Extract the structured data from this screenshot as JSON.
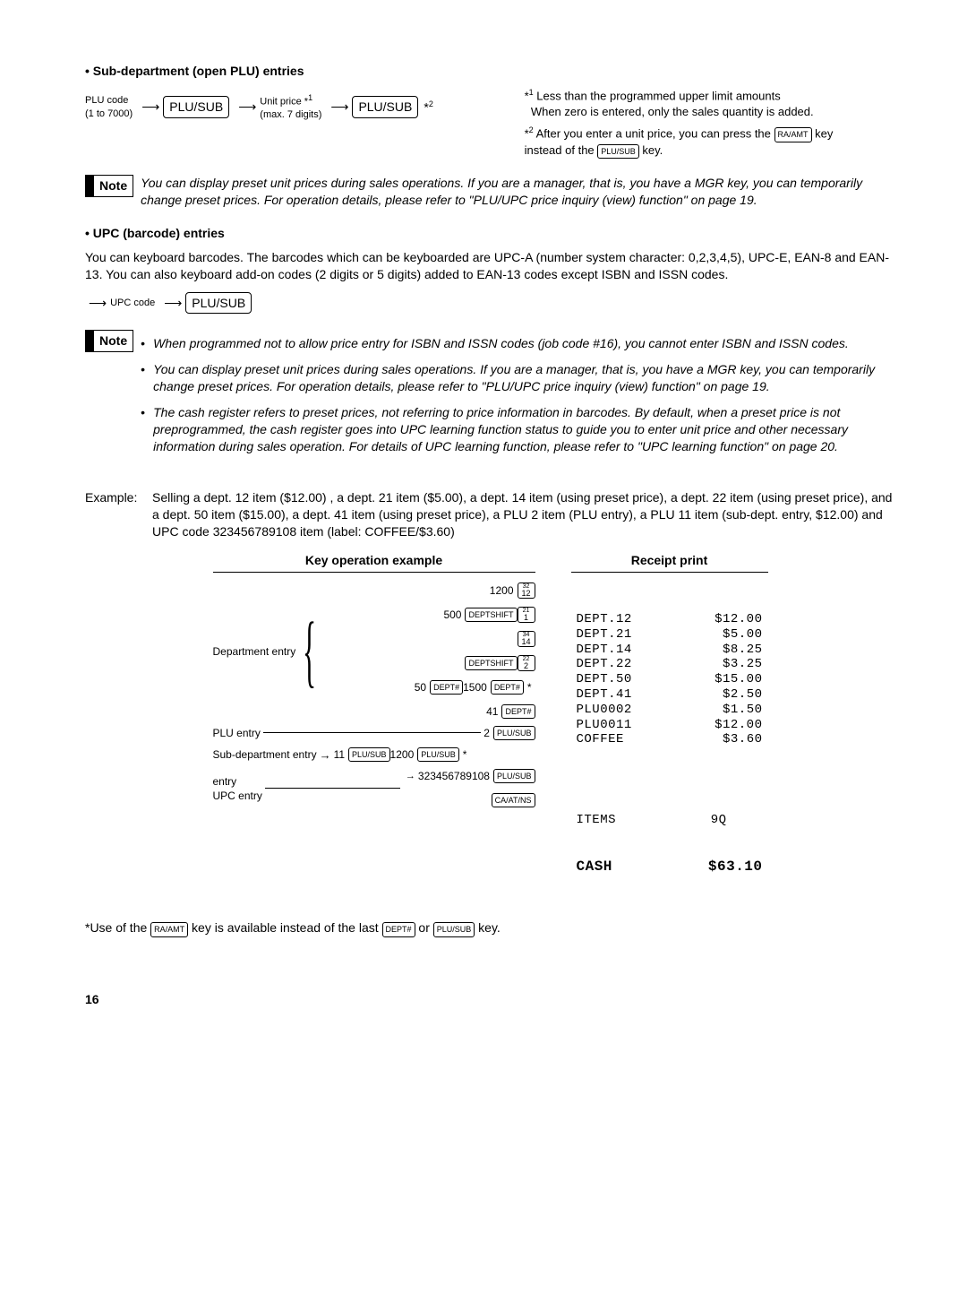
{
  "section1_heading": "• Sub-department (open PLU) entries",
  "flow1": {
    "plu_code": "PLU code",
    "plu_code_sub": "(1 to 7000)",
    "key1": "PLU/SUB",
    "unit_price": "Unit price *",
    "sup1": "1",
    "unit_price_sub": "(max. 7 digits)",
    "key2": "PLU/SUB",
    "star2": "*",
    "sup2": "2"
  },
  "side_notes": {
    "n1_star": "*",
    "n1_sup": "1",
    "n1_line1": "Less than the programmed upper limit amounts",
    "n1_line2": "When zero is entered, only the sales quantity is added.",
    "n2_star": "*",
    "n2_sup": "2",
    "n2_text_a": "After you enter a unit price, you can press the ",
    "n2_key1": "RA/AMT",
    "n2_text_b": " key instead of the ",
    "n2_key2": "PLU/SUB",
    "n2_text_c": " key."
  },
  "note1": {
    "label": "Note",
    "text": "You can display preset unit prices during sales operations.  If you are a manager, that is, you have a MGR key, you can temporarily change preset prices.   For operation details, please refer to \"PLU/UPC price inquiry (view) function\" on page 19."
  },
  "section2_heading": "• UPC (barcode) entries",
  "section2_para": "You can keyboard barcodes. The barcodes which can be keyboarded are UPC-A (number system character: 0,2,3,4,5), UPC-E, EAN-8 and EAN-13. You can also keyboard add-on codes (2 digits or 5 digits) added to EAN-13 codes except ISBN and ISSN codes.",
  "flow2": {
    "upc_code": "UPC code",
    "key": "PLU/SUB"
  },
  "note2": {
    "label": "Note",
    "b1": "When programmed not to allow price entry for ISBN and ISSN codes (job code #16), you cannot enter ISBN and ISSN codes.",
    "b2": "You can display preset unit prices during sales operations.  If you are a manager, that is, you have a MGR key, you can temporarily change preset prices.   For operation details, please refer to \"PLU/UPC price inquiry (view) function\" on page 19.",
    "b3": "The cash register refers to preset prices, not referring to price information in barcodes.  By default, when a preset price is not preprogrammed, the cash register goes into UPC learning function status to guide you to enter unit price and other necessary information during sales operation.  For details of UPC learning function, please refer to \"UPC learning function\" on page 20."
  },
  "example": {
    "label": "Example:",
    "text": "Selling a dept. 12 item ($12.00) , a dept. 21 item ($5.00), a dept. 14 item (using preset price), a dept. 22 item (using preset price), and a dept. 50 item ($15.00), a dept. 41 item (using preset price), a PLU 2 item (PLU entry), a PLU 11 item (sub-dept. entry, $12.00) and UPC code 323456789108 item (label: COFFEE/$3.60)"
  },
  "keyop": {
    "title": "Key operation example",
    "dept_label": "Department entry",
    "r1_num": "1200",
    "r1_key_top": "32",
    "r1_key_bot": "12",
    "r2_num": "500",
    "r2_shift": "DEPTSHIFT",
    "r2_key_top": "21",
    "r2_key_bot": "1",
    "r3_key_top": "34",
    "r3_key_bot": "14",
    "r4_shift": "DEPTSHIFT",
    "r4_key_top": "22",
    "r4_key_bot": "2",
    "r5_num1": "50",
    "r5_key1": "DEPT#",
    "r5_num2": "1500",
    "r5_key2": "DEPT#",
    "r5_star": "*",
    "r6_num": "41",
    "r6_key": "DEPT#",
    "plu_label": "PLU entry",
    "r7_num": "2",
    "r7_key": "PLU/SUB",
    "sub_label": "Sub-department entry",
    "r8_num1": "11",
    "r8_key1": "PLU/SUB",
    "r8_num2": "1200",
    "r8_key2": "PLU/SUB",
    "r8_star": "*",
    "upc_label": "UPC entry",
    "r9_num": "323456789108",
    "r9_key": "PLU/SUB",
    "r10_key": "CA/AT/NS"
  },
  "receipt": {
    "title": "Receipt print",
    "lines": [
      {
        "l": "DEPT.12",
        "r": "$12.00"
      },
      {
        "l": "DEPT.21",
        "r": "$5.00"
      },
      {
        "l": "DEPT.14",
        "r": "$8.25"
      },
      {
        "l": "DEPT.22",
        "r": "$3.25"
      },
      {
        "l": "DEPT.50",
        "r": "$15.00"
      },
      {
        "l": "DEPT.41",
        "r": "$2.50"
      },
      {
        "l": "PLU0002",
        "r": "$1.50"
      },
      {
        "l": "PLU0011",
        "r": "$12.00"
      },
      {
        "l": "COFFEE",
        "r": "$3.60"
      }
    ],
    "items_l": "ITEMS",
    "items_r": "9Q",
    "cash_l": "CASH",
    "cash_r": "$63.10"
  },
  "footnote": {
    "pre": "*Use of the ",
    "key1": "RA/AMT",
    "mid1": " key is available instead of the last ",
    "key2": "DEPT#",
    "mid2": " or ",
    "key3": "PLU/SUB",
    "post": " key."
  },
  "pagenum": "16"
}
